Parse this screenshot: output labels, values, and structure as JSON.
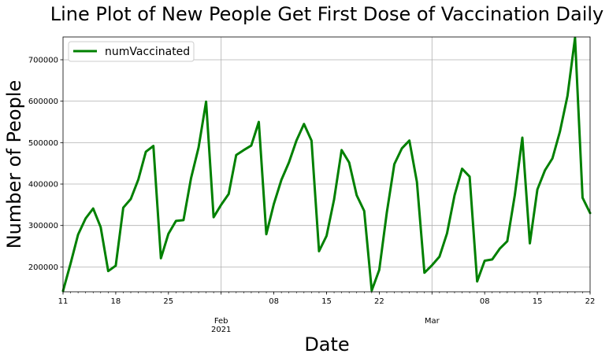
{
  "chart_data": {
    "type": "line",
    "title": "Line Plot of New People Get First Dose of Vaccination Daily",
    "xlabel": "Date",
    "ylabel": "Number of People",
    "x_range": [
      "2021-01-11",
      "2021-03-22"
    ],
    "ylim": [
      140000,
      755000
    ],
    "grid": true,
    "legend_position": "upper-left",
    "y_ticks": [
      {
        "value": 200000,
        "label": "200000"
      },
      {
        "value": 300000,
        "label": "300000"
      },
      {
        "value": 400000,
        "label": "400000"
      },
      {
        "value": 500000,
        "label": "500000"
      },
      {
        "value": 600000,
        "label": "600000"
      },
      {
        "value": 700000,
        "label": "700000"
      }
    ],
    "x_major_ticks": [
      {
        "date": "2021-02-01",
        "label": "Feb",
        "sublabel": "2021"
      },
      {
        "date": "2021-03-01",
        "label": "Mar",
        "sublabel": ""
      }
    ],
    "x_minor_ticks": [
      {
        "date": "2021-01-11",
        "label": "11"
      },
      {
        "date": "2021-01-18",
        "label": "18"
      },
      {
        "date": "2021-01-25",
        "label": "25"
      },
      {
        "date": "2021-02-08",
        "label": "08"
      },
      {
        "date": "2021-02-15",
        "label": "15"
      },
      {
        "date": "2021-02-22",
        "label": "22"
      },
      {
        "date": "2021-03-08",
        "label": "08"
      },
      {
        "date": "2021-03-15",
        "label": "15"
      },
      {
        "date": "2021-03-22",
        "label": "22"
      }
    ],
    "series": [
      {
        "name": "numVaccinated",
        "color": "#008000",
        "x": [
          "2021-01-11",
          "2021-01-12",
          "2021-01-13",
          "2021-01-14",
          "2021-01-15",
          "2021-01-16",
          "2021-01-17",
          "2021-01-18",
          "2021-01-19",
          "2021-01-20",
          "2021-01-21",
          "2021-01-22",
          "2021-01-23",
          "2021-01-24",
          "2021-01-25",
          "2021-01-26",
          "2021-01-27",
          "2021-01-28",
          "2021-01-29",
          "2021-01-30",
          "2021-01-31",
          "2021-02-01",
          "2021-02-02",
          "2021-02-03",
          "2021-02-04",
          "2021-02-05",
          "2021-02-06",
          "2021-02-07",
          "2021-02-08",
          "2021-02-09",
          "2021-02-10",
          "2021-02-11",
          "2021-02-12",
          "2021-02-13",
          "2021-02-14",
          "2021-02-15",
          "2021-02-16",
          "2021-02-17",
          "2021-02-18",
          "2021-02-19",
          "2021-02-20",
          "2021-02-21",
          "2021-02-22",
          "2021-02-23",
          "2021-02-24",
          "2021-02-25",
          "2021-02-26",
          "2021-02-27",
          "2021-02-28",
          "2021-03-01",
          "2021-03-02",
          "2021-03-03",
          "2021-03-04",
          "2021-03-05",
          "2021-03-06",
          "2021-03-07",
          "2021-03-08",
          "2021-03-09",
          "2021-03-10",
          "2021-03-11",
          "2021-03-12",
          "2021-03-13",
          "2021-03-14",
          "2021-03-15",
          "2021-03-16",
          "2021-03-17",
          "2021-03-18",
          "2021-03-19",
          "2021-03-20",
          "2021-03-21",
          "2021-03-22"
        ],
        "values": [
          142000,
          208000,
          278000,
          317000,
          341000,
          296000,
          190000,
          203000,
          343000,
          364000,
          411000,
          478000,
          492000,
          221000,
          280000,
          311000,
          313000,
          414000,
          488000,
          599000,
          320000,
          350000,
          376000,
          470000,
          482000,
          493000,
          550000,
          279000,
          352000,
          410000,
          452000,
          505000,
          545000,
          505000,
          238000,
          275000,
          363000,
          482000,
          452000,
          373000,
          335000,
          143000,
          193000,
          331000,
          448000,
          486000,
          505000,
          405000,
          186000,
          204000,
          225000,
          281000,
          373000,
          437000,
          418000,
          165000,
          215000,
          218000,
          244000,
          262000,
          373000,
          512000,
          257000,
          387000,
          433000,
          462000,
          527000,
          613000,
          753000,
          367000,
          330000
        ]
      }
    ]
  }
}
